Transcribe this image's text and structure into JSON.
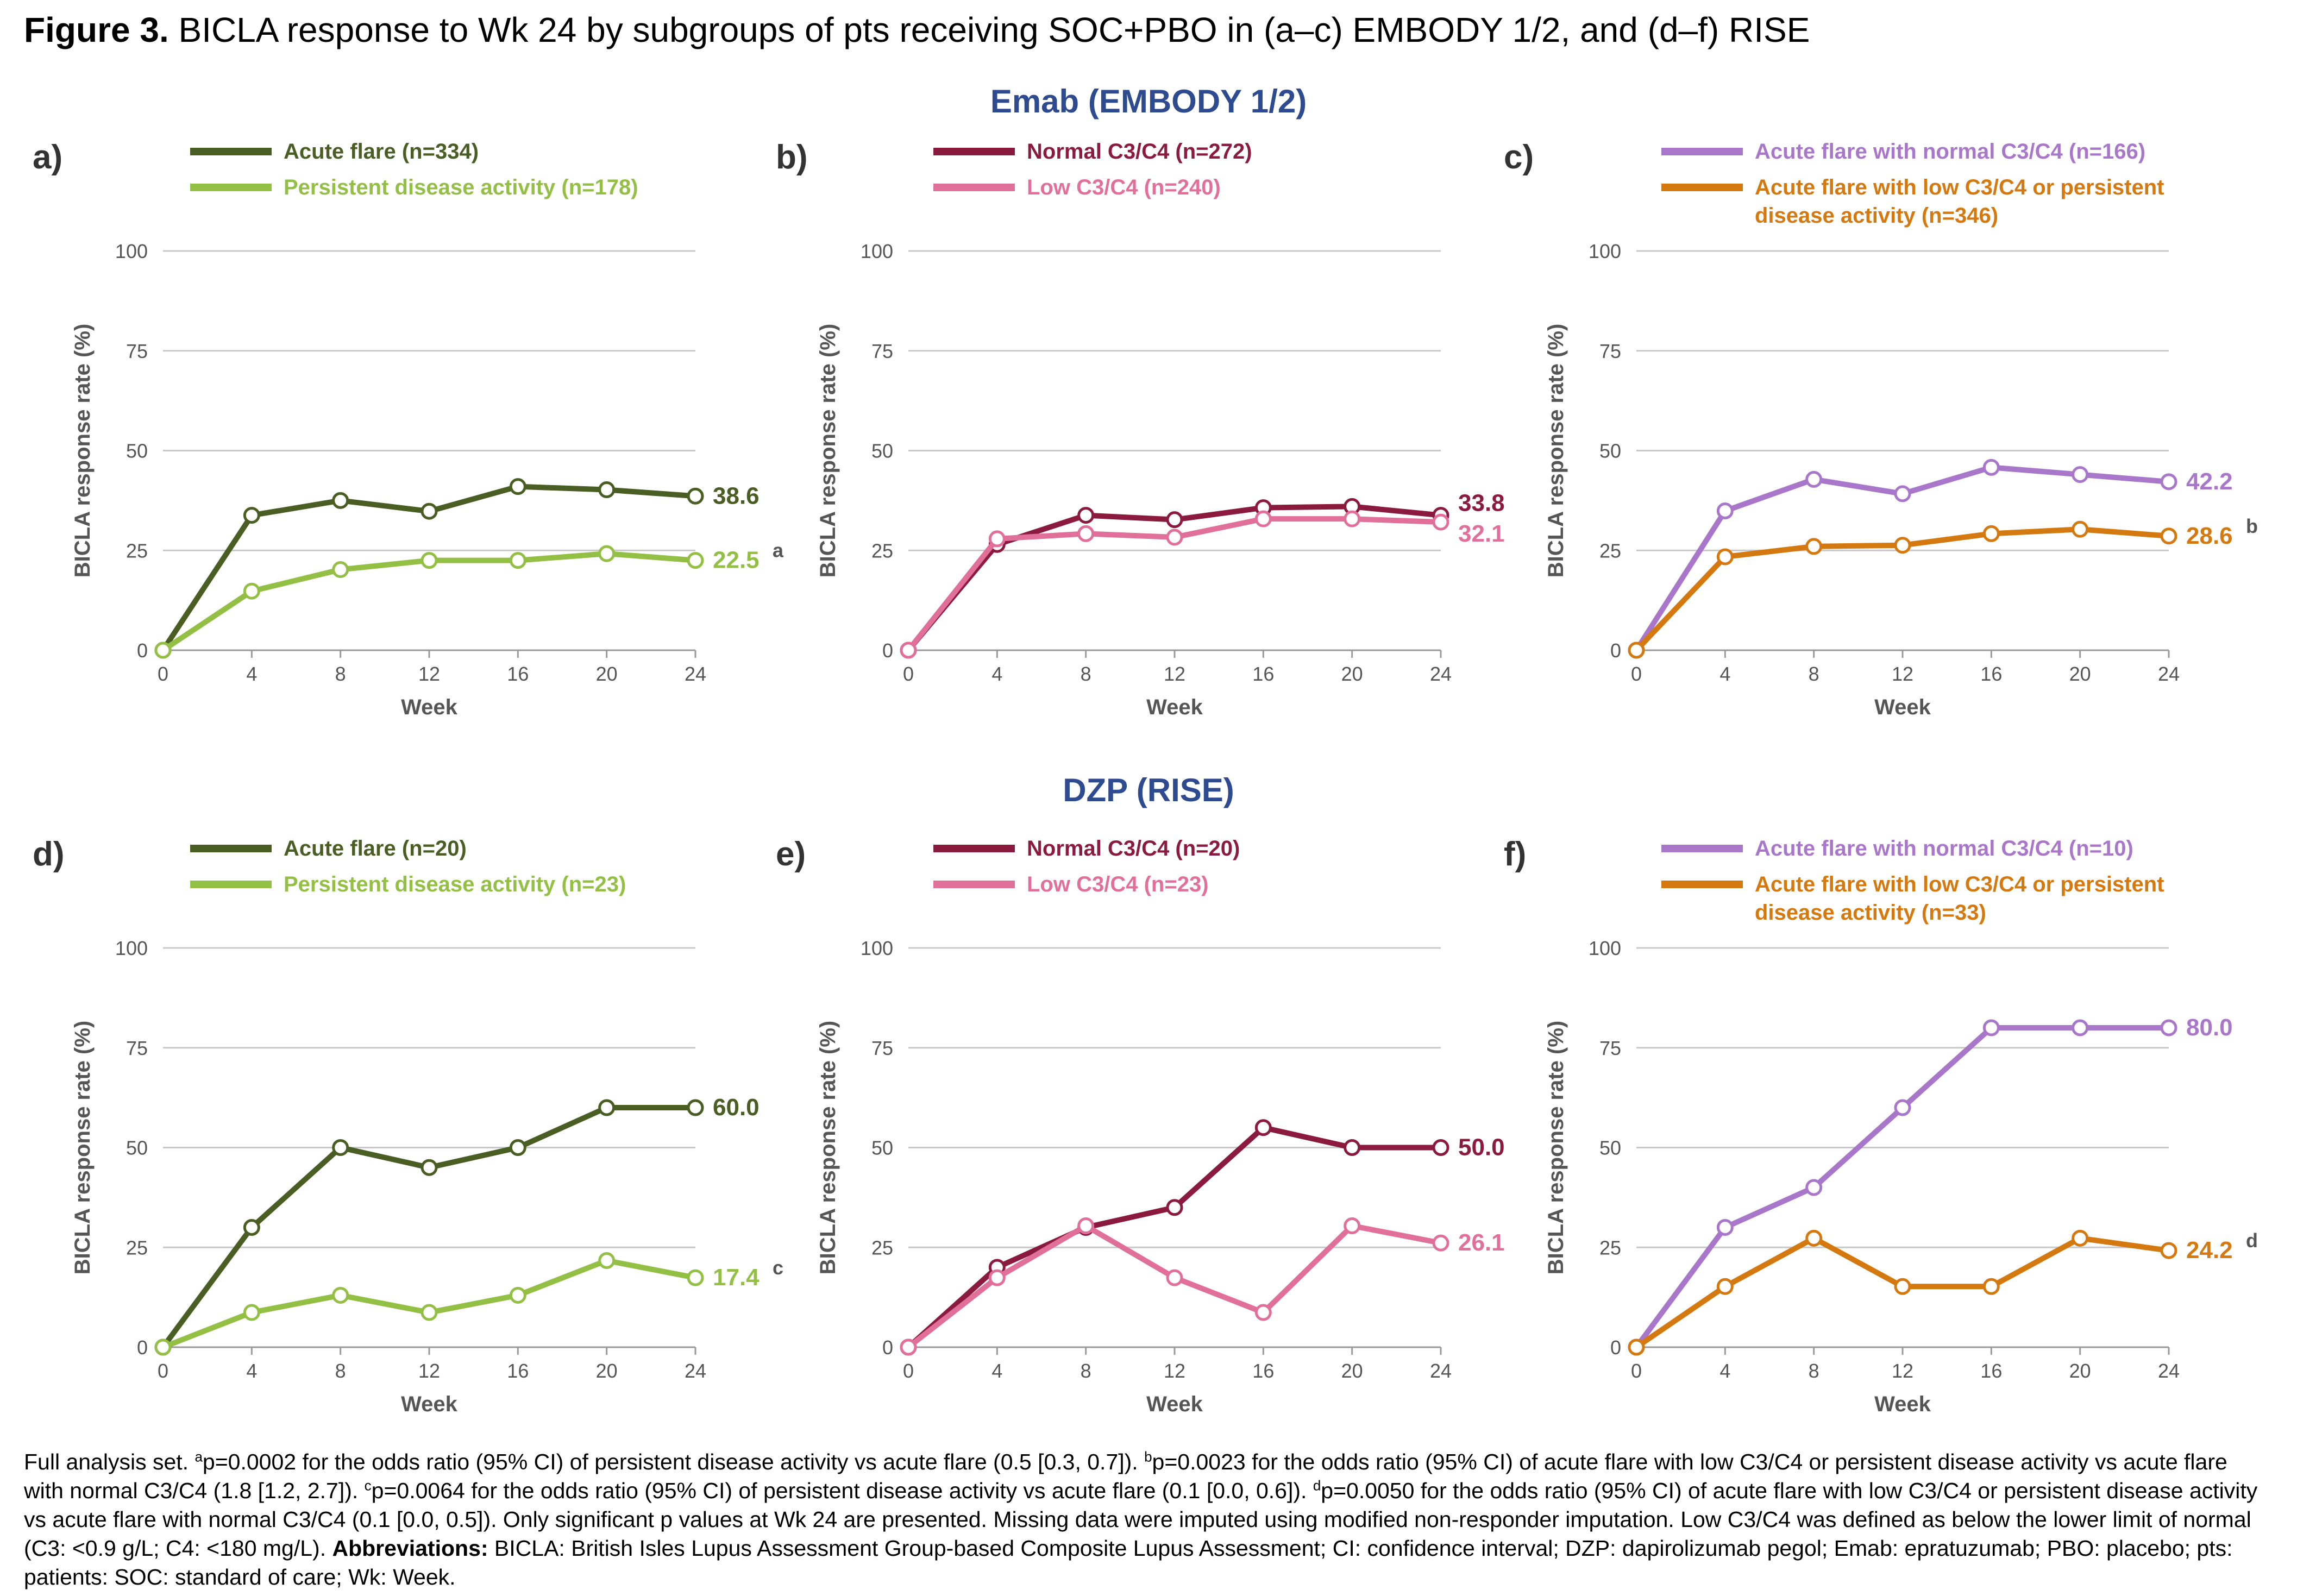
{
  "title": {
    "figure_label": "Figure 3.",
    "caption": "BICLA response to Wk 24 by subgroups of pts receiving SOC+PBO in (a–c) EMBODY 1/2, and (d–f) RISE"
  },
  "groups": {
    "top": "Emab (EMBODY 1/2)",
    "bottom": "DZP (RISE)"
  },
  "colors": {
    "dark_green": "#4a5d23",
    "light_green": "#93bf45",
    "dark_red": "#8b1a3f",
    "pink": "#e0709a",
    "purple": "#a977c9",
    "orange": "#d4790f",
    "grid": "#c8c8c8",
    "axis_text": "#555555",
    "heading_blue": "#2e4b8f"
  },
  "chart_data": [
    {
      "panel": "a)",
      "type": "line",
      "x": [
        0,
        4,
        8,
        12,
        16,
        20,
        24
      ],
      "xlabel": "Week",
      "ylabel": "BICLA response rate (%)",
      "ylim": [
        0,
        100
      ],
      "yticks": [
        0,
        25,
        50,
        75,
        100
      ],
      "xticks": [
        0,
        4,
        8,
        12,
        16,
        20,
        24
      ],
      "grid": "horizontal",
      "legend": "top-left",
      "series": [
        {
          "name": "Acute flare (n=334)",
          "color": "#4a5d23",
          "marker": "white-circle",
          "values": [
            0,
            33.8,
            37.5,
            34.8,
            41.0,
            40.2,
            38.6
          ],
          "end_label": "38.6",
          "end_sup": ""
        },
        {
          "name": "Persistent disease activity (n=178)",
          "color": "#93bf45",
          "marker": "white-circle",
          "values": [
            0,
            14.8,
            20.2,
            22.5,
            22.5,
            24.2,
            22.5
          ],
          "end_label": "22.5",
          "end_sup": "a"
        }
      ]
    },
    {
      "panel": "b)",
      "type": "line",
      "x": [
        0,
        4,
        8,
        12,
        16,
        20,
        24
      ],
      "xlabel": "Week",
      "ylabel": "BICLA response rate (%)",
      "ylim": [
        0,
        100
      ],
      "yticks": [
        0,
        25,
        50,
        75,
        100
      ],
      "xticks": [
        0,
        4,
        8,
        12,
        16,
        20,
        24
      ],
      "grid": "horizontal",
      "legend": "top-left",
      "series": [
        {
          "name": "Normal C3/C4 (n=272)",
          "color": "#8b1a3f",
          "marker": "white-circle",
          "values": [
            0,
            26.5,
            33.8,
            32.7,
            35.7,
            36.0,
            33.8
          ],
          "end_label": "33.8",
          "end_sup": ""
        },
        {
          "name": "Low C3/C4 (n=240)",
          "color": "#e0709a",
          "marker": "white-circle",
          "values": [
            0,
            27.9,
            29.2,
            28.3,
            32.9,
            32.9,
            32.1
          ],
          "end_label": "32.1",
          "end_sup": ""
        }
      ]
    },
    {
      "panel": "c)",
      "type": "line",
      "x": [
        0,
        4,
        8,
        12,
        16,
        20,
        24
      ],
      "xlabel": "Week",
      "ylabel": "BICLA response rate (%)",
      "ylim": [
        0,
        100
      ],
      "yticks": [
        0,
        25,
        50,
        75,
        100
      ],
      "xticks": [
        0,
        4,
        8,
        12,
        16,
        20,
        24
      ],
      "grid": "horizontal",
      "legend": "top-left",
      "series": [
        {
          "name": "Acute flare with normal C3/C4 (n=166)",
          "color": "#a977c9",
          "marker": "white-circle",
          "values": [
            0,
            34.9,
            42.8,
            39.2,
            45.8,
            44.0,
            42.2
          ],
          "end_label": "42.2",
          "end_sup": ""
        },
        {
          "name": "Acute flare with low C3/C4 or persistent disease activity (n=346)",
          "color": "#d4790f",
          "marker": "white-circle",
          "values": [
            0,
            23.4,
            26.0,
            26.3,
            29.2,
            30.3,
            28.6
          ],
          "end_label": "28.6",
          "end_sup": "b"
        }
      ]
    },
    {
      "panel": "d)",
      "type": "line",
      "x": [
        0,
        4,
        8,
        12,
        16,
        20,
        24
      ],
      "xlabel": "Week",
      "ylabel": "BICLA response rate (%)",
      "ylim": [
        0,
        100
      ],
      "yticks": [
        0,
        25,
        50,
        75,
        100
      ],
      "xticks": [
        0,
        4,
        8,
        12,
        16,
        20,
        24
      ],
      "grid": "horizontal",
      "legend": "top-left",
      "series": [
        {
          "name": "Acute flare (n=20)",
          "color": "#4a5d23",
          "marker": "white-circle",
          "values": [
            0,
            30.0,
            50.0,
            45.0,
            50.0,
            60.0,
            60.0
          ],
          "end_label": "60.0",
          "end_sup": ""
        },
        {
          "name": "Persistent disease activity (n=23)",
          "color": "#93bf45",
          "marker": "white-circle",
          "values": [
            0,
            8.7,
            13.0,
            8.7,
            13.0,
            21.7,
            17.4
          ],
          "end_label": "17.4",
          "end_sup": "c"
        }
      ]
    },
    {
      "panel": "e)",
      "type": "line",
      "x": [
        0,
        4,
        8,
        12,
        16,
        20,
        24
      ],
      "xlabel": "Week",
      "ylabel": "BICLA response rate (%)",
      "ylim": [
        0,
        100
      ],
      "yticks": [
        0,
        25,
        50,
        75,
        100
      ],
      "xticks": [
        0,
        4,
        8,
        12,
        16,
        20,
        24
      ],
      "grid": "horizontal",
      "legend": "top-left",
      "series": [
        {
          "name": "Normal C3/C4 (n=20)",
          "color": "#8b1a3f",
          "marker": "white-circle",
          "values": [
            0,
            20.0,
            30.0,
            35.0,
            55.0,
            50.0,
            50.0
          ],
          "end_label": "50.0",
          "end_sup": ""
        },
        {
          "name": "Low C3/C4 (n=23)",
          "color": "#e0709a",
          "marker": "white-circle",
          "values": [
            0,
            17.4,
            30.4,
            17.4,
            8.7,
            30.4,
            26.1
          ],
          "end_label": "26.1",
          "end_sup": ""
        }
      ]
    },
    {
      "panel": "f)",
      "type": "line",
      "x": [
        0,
        4,
        8,
        12,
        16,
        20,
        24
      ],
      "xlabel": "Week",
      "ylabel": "BICLA response rate (%)",
      "ylim": [
        0,
        100
      ],
      "yticks": [
        0,
        25,
        50,
        75,
        100
      ],
      "xticks": [
        0,
        4,
        8,
        12,
        16,
        20,
        24
      ],
      "grid": "horizontal",
      "legend": "top-left",
      "series": [
        {
          "name": "Acute flare with normal C3/C4 (n=10)",
          "color": "#a977c9",
          "marker": "white-circle",
          "values": [
            0,
            30.0,
            40.0,
            60.0,
            80.0,
            80.0,
            80.0
          ],
          "end_label": "80.0",
          "end_sup": ""
        },
        {
          "name": "Acute flare with low C3/C4 or persistent disease activity (n=33)",
          "color": "#d4790f",
          "marker": "white-circle",
          "values": [
            0,
            15.2,
            27.3,
            15.2,
            15.2,
            27.3,
            24.2
          ],
          "end_label": "24.2",
          "end_sup": "d"
        }
      ]
    }
  ],
  "footnote": {
    "intro": "Full analysis set. ",
    "sup_a": "a",
    "text_a": "p=0.0002 for the odds ratio (95% CI) of persistent disease activity vs acute flare (0.5 [0.3, 0.7]). ",
    "sup_b": "b",
    "text_b": "p=0.0023 for the odds ratio (95% CI) of acute flare with low C3/C4 or persistent disease activity vs acute flare with normal C3/C4 (1.8 [1.2, 2.7]). ",
    "sup_c": "c",
    "text_c": "p=0.0064 for the odds ratio (95% CI) of persistent disease activity vs acute flare (0.1 [0.0, 0.6]). ",
    "sup_d": "d",
    "text_d": "p=0.0050 for the odds ratio (95% CI) of acute flare with low C3/C4 or persistent disease activity vs acute flare with normal C3/C4 (0.1 [0.0, 0.5]). Only significant p values at Wk 24 are presented. Missing data were imputed using modified non-responder imputation. Low C3/C4 was defined as below the lower limit of normal (C3: <0.9 g/L; C4: <180 mg/L). ",
    "abbr_label": "Abbreviations:",
    "abbr_text": " BICLA: British Isles Lupus Assessment Group-based Composite Lupus Assessment; CI: confidence interval; DZP: dapirolizumab pegol; Emab: epratuzumab; PBO: placebo; pts: patients: SOC: standard of care; Wk: Week."
  }
}
